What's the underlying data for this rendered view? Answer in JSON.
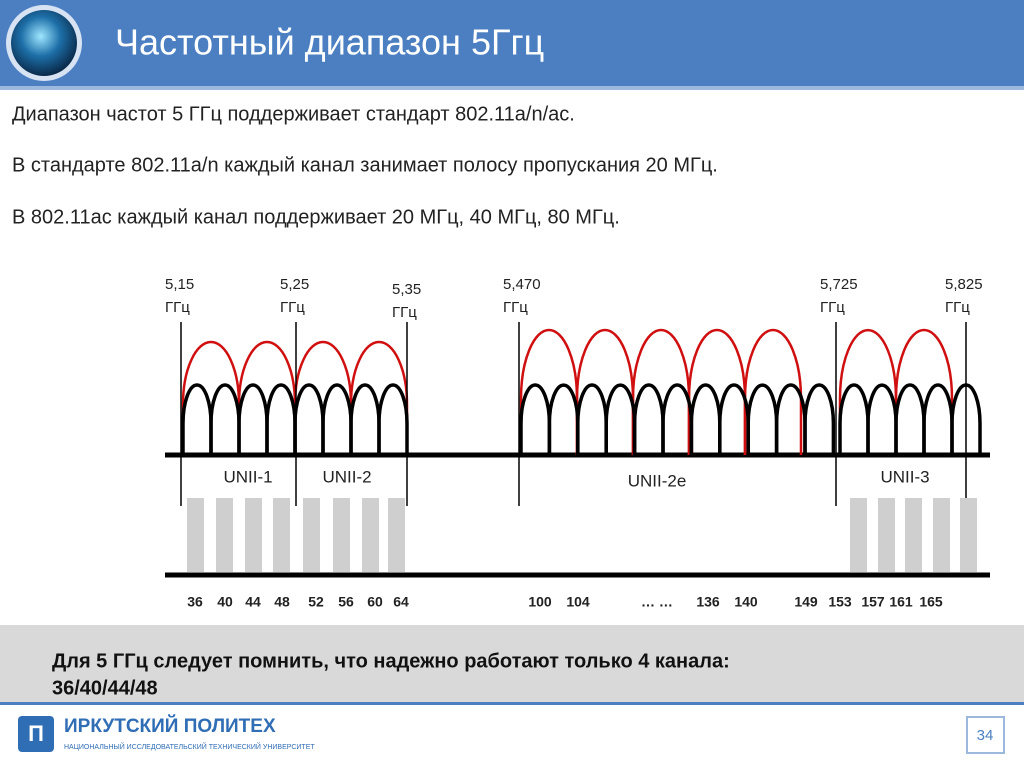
{
  "header": {
    "title": "Частотный диапазон 5Ггц"
  },
  "body": {
    "lines": [
      "Диапазон частот 5 ГГц поддерживает стандарт 802.11a/n/ac.",
      "В стандарте 802.11a/n каждый канал занимает полосу пропускания 20 МГц.",
      "В 802.11ac каждый канал поддерживает 20 МГц, 40 МГц, 80 МГц."
    ]
  },
  "diagram": {
    "frequencies": [
      {
        "value": "5,15",
        "unit": "ГГц"
      },
      {
        "value": "5,25",
        "unit": "ГГц"
      },
      {
        "value": "5,35",
        "unit": "ГГц"
      },
      {
        "value": "5,470",
        "unit": "ГГц"
      },
      {
        "value": "5,725",
        "unit": "ГГц"
      },
      {
        "value": "5,825",
        "unit": "ГГц"
      }
    ],
    "bands": [
      "UNII-1",
      "UNII-2",
      "UNII-2e",
      "UNII-3"
    ],
    "channels": [
      "36",
      "40",
      "44",
      "48",
      "52",
      "56",
      "60",
      "64",
      "100",
      "104",
      "… …",
      "136",
      "140",
      "149",
      "153",
      "157",
      "161",
      "165"
    ]
  },
  "note": {
    "lines": [
      "Для 5 ГГц следует помнить, что надежно работают только 4 канала:",
      "36/40/44/48"
    ]
  },
  "footer": {
    "logo": "ИРКУТСКИЙ ПОЛИТЕХ",
    "subtitle": "НАЦИОНАЛЬНЫЙ ИССЛЕДОВАТЕЛЬСКИЙ ТЕХНИЧЕСКИЙ УНИВЕРСИТЕТ",
    "page": "34"
  }
}
